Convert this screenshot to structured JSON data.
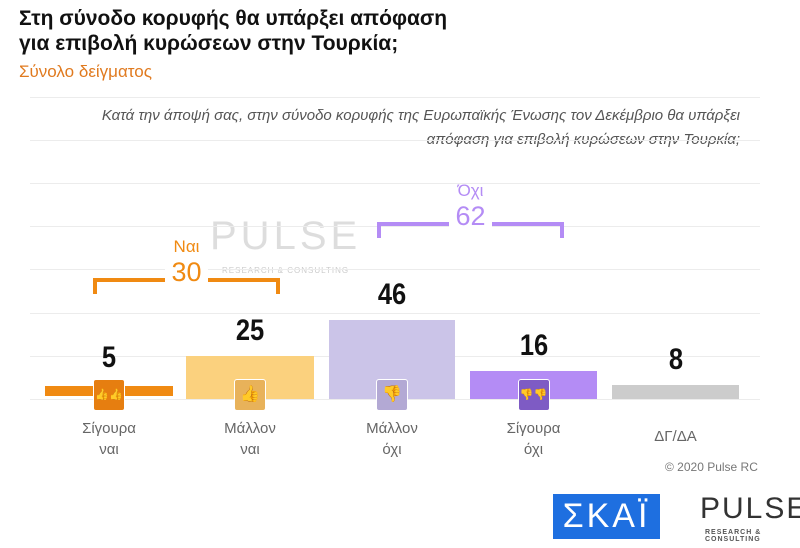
{
  "chart_data": {
    "type": "bar",
    "title": "Στη σύνοδο κορυφής θα υπάρξει απόφαση για επιβολή κυρώσεων στην Τουρκία;",
    "subtitle": "Σύνολο δείγματος",
    "question": "Κατά την άποψή σας, στην σύνοδο κορυφής της Ευρωπαϊκής Ένωσης τον Δεκέμβριο θα υπάρξει απόφαση για επιβολή κυρώσεων στην Τουρκία;",
    "categories": [
      "Σίγουρα ναι",
      "Μάλλον ναι",
      "Μάλλον όχι",
      "Σίγουρα όχι",
      "ΔΓ/ΔΑ"
    ],
    "cat_lines": [
      [
        "Σίγουρα",
        "ναι"
      ],
      [
        "Μάλλον",
        "ναι"
      ],
      [
        "Μάλλον",
        "όχι"
      ],
      [
        "Σίγουρα",
        "όχι"
      ],
      [
        "ΔΓ/ΔΑ",
        ""
      ]
    ],
    "values": [
      5,
      25,
      46,
      16,
      8
    ],
    "value_labels": [
      "5",
      "25",
      "46",
      "16",
      "8"
    ],
    "colors": [
      "#f08a12",
      "#fbd17e",
      "#cbc4e8",
      "#b48cf5",
      "#cccccc"
    ],
    "icons": [
      "double-thumbs-up-icon",
      "thumbs-up-icon",
      "thumbs-down-icon",
      "double-thumbs-down-icon",
      ""
    ],
    "icon_colors": [
      "#e67e10",
      "#e8b25a",
      "#b3a9d4",
      "#7e5bc4"
    ],
    "groups": [
      {
        "label": "Ναι",
        "value": "30",
        "color": "#f08a12"
      },
      {
        "label": "Όχι",
        "value": "62",
        "color": "#b48cf5"
      }
    ],
    "ylim": [
      0,
      50
    ]
  },
  "footer": {
    "copyright": "© 2020 Pulse RC",
    "skai_logo": "ΣΚΑΪ",
    "pulse_logo": "PULSE",
    "pulse_tagline": "RESEARCH & CONSULTING"
  }
}
